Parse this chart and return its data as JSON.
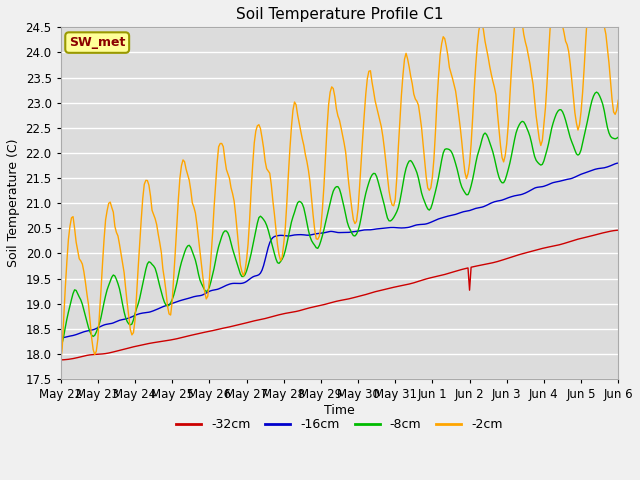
{
  "title": "Soil Temperature Profile C1",
  "xlabel": "Time",
  "ylabel": "Soil Temperature (C)",
  "ylim": [
    17.5,
    24.5
  ],
  "annotation": "SW_met",
  "annotation_color": "#8B0000",
  "annotation_bg": "#FFFF99",
  "fig_bg": "#F0F0F0",
  "plot_bg": "#DCDCDC",
  "legend_entries": [
    "-32cm",
    "-16cm",
    "-8cm",
    "-2cm"
  ],
  "line_colors": [
    "#CC0000",
    "#0000CC",
    "#00BB00",
    "#FFA500"
  ],
  "x_tick_labels": [
    "May 22",
    "May 23",
    "May 24",
    "May 25",
    "May 26",
    "May 27",
    "May 28",
    "May 29",
    "May 30",
    "May 31",
    "Jun 1",
    "Jun 2",
    "Jun 3",
    "Jun 4",
    "Jun 5",
    "Jun 6"
  ],
  "yticks": [
    17.5,
    18.0,
    18.5,
    19.0,
    19.5,
    20.0,
    20.5,
    21.0,
    21.5,
    22.0,
    22.5,
    23.0,
    23.5,
    24.0,
    24.5
  ],
  "n_points": 361
}
